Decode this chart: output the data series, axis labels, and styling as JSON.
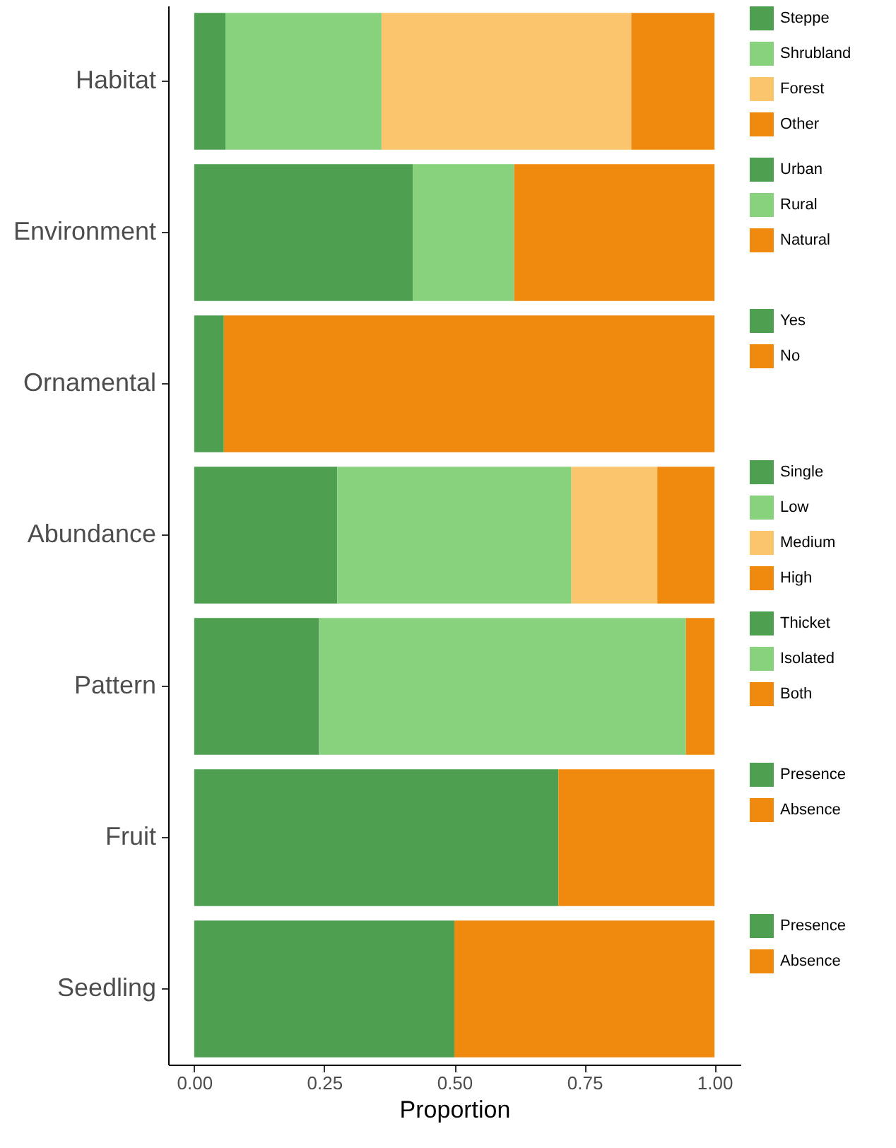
{
  "chart_data": {
    "type": "bar",
    "orientation": "horizontal",
    "stacked": true,
    "legend": "right",
    "categories": [
      "Habitat",
      "Environment",
      "Ornamental",
      "Abundance",
      "Pattern",
      "Fruit",
      "Seedling"
    ],
    "xlabel": "Proportion",
    "xlim": [
      -0.05,
      1.05
    ],
    "xticks": [
      {
        "value": 0,
        "label": "0.00"
      },
      {
        "value": 0.25,
        "label": "0.25"
      },
      {
        "value": 0.5,
        "label": "0.50"
      },
      {
        "value": 0.75,
        "label": "0.75"
      },
      {
        "value": 1,
        "label": "1.00"
      }
    ],
    "series": [
      {
        "name": "Steppe",
        "color": "#4e9f50",
        "values": [
          0.06,
          null,
          null,
          null,
          null,
          null,
          null
        ]
      },
      {
        "name": "Shrubland",
        "color": "#88d27e",
        "values": [
          0.3,
          null,
          null,
          null,
          null,
          null,
          null
        ]
      },
      {
        "name": "Forest",
        "color": "#fbc56d",
        "values": [
          0.48,
          null,
          null,
          null,
          null,
          null,
          null
        ]
      },
      {
        "name": "Other",
        "color": "#f08a0f",
        "values": [
          0.16,
          null,
          null,
          null,
          null,
          null,
          null
        ]
      },
      {
        "name": "Urban",
        "color": "#4e9f50",
        "values": [
          null,
          0.42,
          null,
          null,
          null,
          null,
          null
        ]
      },
      {
        "name": "Rural",
        "color": "#88d27e",
        "values": [
          null,
          0.195,
          null,
          null,
          null,
          null,
          null
        ]
      },
      {
        "name": "Natural",
        "color": "#f08a0f",
        "values": [
          null,
          0.385,
          null,
          null,
          null,
          null,
          null
        ]
      },
      {
        "name": "Yes",
        "color": "#4e9f50",
        "values": [
          null,
          null,
          0.057,
          null,
          null,
          null,
          null
        ]
      },
      {
        "name": "No",
        "color": "#f08a0f",
        "values": [
          null,
          null,
          0.943,
          null,
          null,
          null,
          null
        ]
      },
      {
        "name": "Single",
        "color": "#4e9f50",
        "values": [
          null,
          null,
          null,
          0.275,
          null,
          null,
          null
        ]
      },
      {
        "name": "Low",
        "color": "#88d27e",
        "values": [
          null,
          null,
          null,
          0.45,
          null,
          null,
          null
        ]
      },
      {
        "name": "Medium",
        "color": "#fbc56d",
        "values": [
          null,
          null,
          null,
          0.165,
          null,
          null,
          null
        ]
      },
      {
        "name": "High",
        "color": "#f08a0f",
        "values": [
          null,
          null,
          null,
          0.11,
          null,
          null,
          null
        ]
      },
      {
        "name": "Thicket",
        "color": "#4e9f50",
        "values": [
          null,
          null,
          null,
          null,
          0.24,
          null,
          null
        ]
      },
      {
        "name": "Isolated",
        "color": "#88d27e",
        "values": [
          null,
          null,
          null,
          null,
          0.705,
          null,
          null
        ]
      },
      {
        "name": "Both",
        "color": "#f08a0f",
        "values": [
          null,
          null,
          null,
          null,
          0.055,
          null,
          null
        ]
      },
      {
        "name": "Presence",
        "color": "#4e9f50",
        "values": [
          null,
          null,
          null,
          null,
          null,
          0.7,
          null
        ]
      },
      {
        "name": "Absence",
        "color": "#f08a0f",
        "values": [
          null,
          null,
          null,
          null,
          null,
          0.3,
          null
        ]
      },
      {
        "name": "Presence",
        "color": "#4e9f50",
        "values": [
          null,
          null,
          null,
          null,
          null,
          null,
          0.5
        ]
      },
      {
        "name": "Absence",
        "color": "#f08a0f",
        "values": [
          null,
          null,
          null,
          null,
          null,
          null,
          0.5
        ]
      }
    ]
  }
}
